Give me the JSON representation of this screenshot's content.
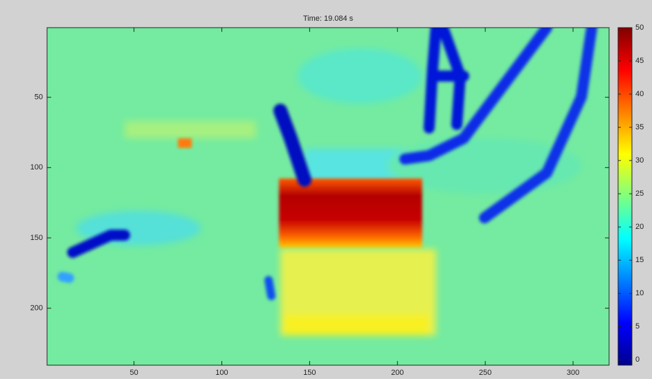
{
  "chart_data": {
    "type": "image",
    "title": "Time: 19.084 s",
    "xlim": [
      0.5,
      320.5
    ],
    "xticks": [
      50,
      100,
      150,
      200,
      250,
      300
    ],
    "ylim": [
      0.5,
      240.5
    ],
    "yticks": [
      50,
      100,
      150,
      200
    ],
    "y_reversed": true,
    "colormap": "jet",
    "clim": [
      -0.8,
      50
    ],
    "cticks": [
      0,
      5,
      10,
      15,
      20,
      25,
      30,
      35,
      40,
      45,
      50
    ]
  }
}
